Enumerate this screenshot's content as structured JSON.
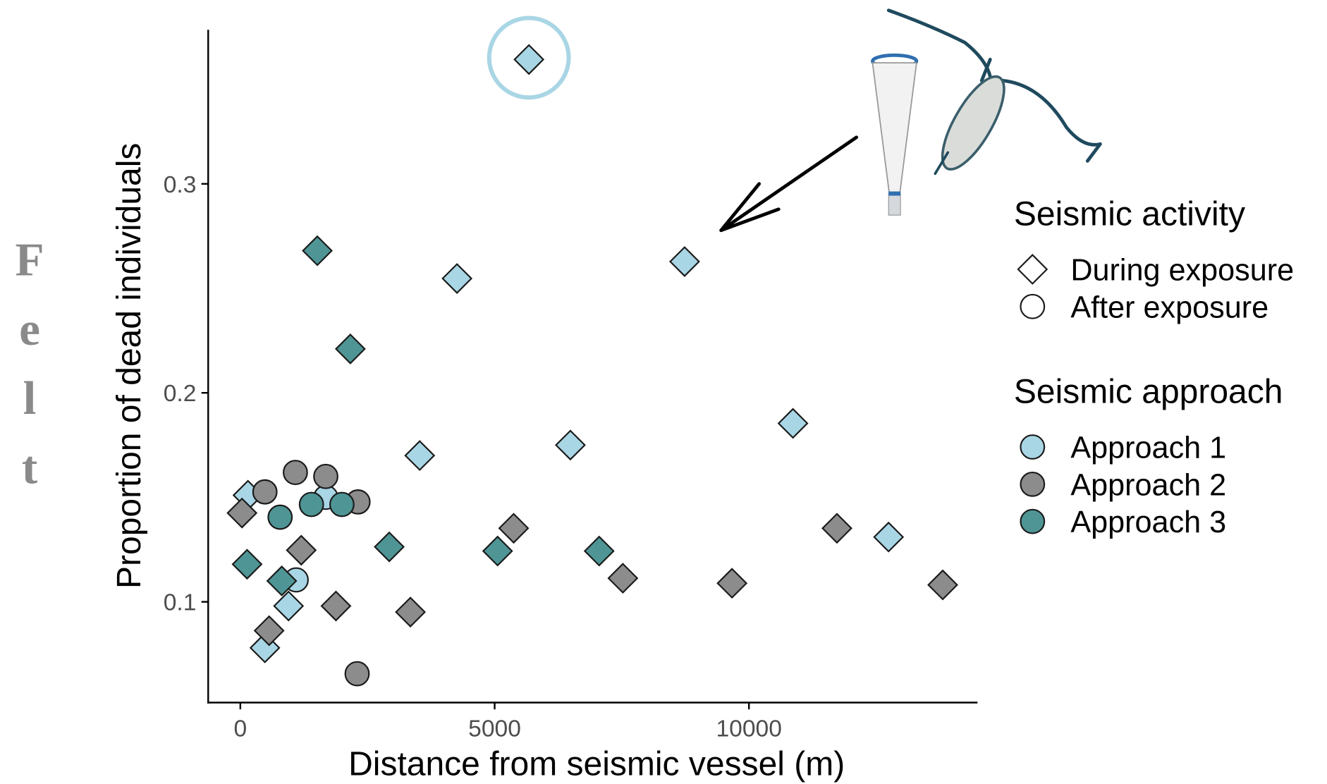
{
  "chart_data": {
    "type": "scatter",
    "xlabel": "Distance from seismic vessel (m)",
    "ylabel": "Proportion of dead individuals",
    "xlim": [
      -632,
      14493
    ],
    "ylim": [
      0.0518,
      0.3737
    ],
    "xticks": [
      0,
      5000,
      10000
    ],
    "yticks": [
      0.1,
      0.2,
      0.3
    ],
    "side_text": [
      "F",
      "e",
      "l",
      "t"
    ],
    "shape_legend": {
      "title": "Seismic activity",
      "entries": [
        {
          "label": "During exposure",
          "shape": "diamond"
        },
        {
          "label": "After exposure",
          "shape": "circle"
        }
      ]
    },
    "color_legend_title": "Seismic approach",
    "series": [
      {
        "name": "Approach 1",
        "color": "#a9d6e5",
        "x": [
          5674,
          4260,
          8735,
          3527,
          6489,
          10865,
          12745,
          948,
          483,
          150,
          1680,
          1098
        ],
        "values": [
          0.3595,
          0.2547,
          0.2628,
          0.17,
          0.175,
          0.1854,
          0.131,
          0.098,
          0.078,
          0.151,
          0.15,
          0.1105
        ],
        "shapes": [
          "diamond",
          "diamond",
          "diamond",
          "diamond",
          "diamond",
          "diamond",
          "diamond",
          "diamond",
          "diamond",
          "diamond",
          "circle",
          "circle"
        ]
      },
      {
        "name": "Approach 2",
        "color": "#8c8c8c",
        "x": [
          33,
          1198,
          566,
          1880,
          3344,
          5374,
          7521,
          9667,
          11730,
          13810,
          483,
          1082,
          1680,
          2313,
          2296
        ],
        "values": [
          0.1425,
          0.1247,
          0.0862,
          0.098,
          0.0951,
          0.1352,
          0.1113,
          0.1089,
          0.1352,
          0.1081,
          0.1526,
          0.1619,
          0.16,
          0.1478,
          0.0656
        ],
        "shapes": [
          "diamond",
          "diamond",
          "diamond",
          "diamond",
          "diamond",
          "diamond",
          "diamond",
          "diamond",
          "diamond",
          "diamond",
          "circle",
          "circle",
          "circle",
          "circle",
          "circle"
        ]
      },
      {
        "name": "Approach 3",
        "color": "#4f9595",
        "x": [
          1514,
          2163,
          2928,
          5058,
          7055,
          133,
          815,
          782,
          1398,
          1997
        ],
        "values": [
          0.268,
          0.221,
          0.1263,
          0.1243,
          0.1243,
          0.118,
          0.11,
          0.1405,
          0.1466,
          0.1466
        ],
        "shapes": [
          "diamond",
          "diamond",
          "diamond",
          "diamond",
          "diamond",
          "diamond",
          "diamond",
          "circle",
          "circle",
          "circle"
        ]
      }
    ]
  }
}
